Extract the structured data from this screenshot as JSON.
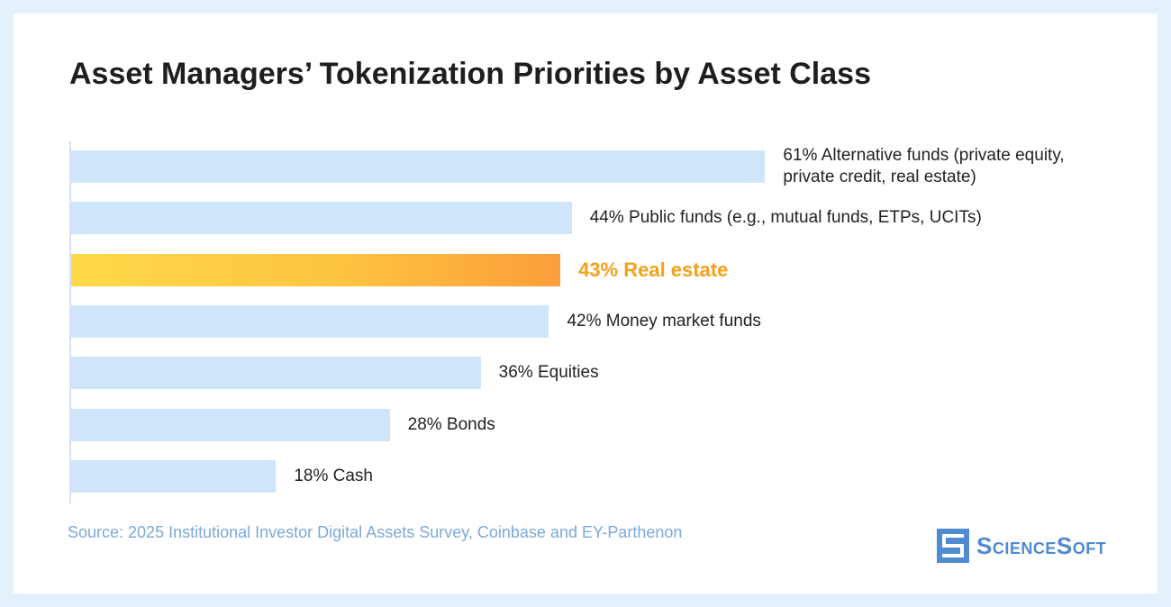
{
  "title": "Asset Managers’ Tokenization Priorities by Asset Class",
  "source": "Source: 2025 Institutional Investor Digital Assets Survey, Coinbase and EY-Parthenon",
  "logo_text": "ScienceSoft",
  "colors": {
    "bar": "#cfe6fa",
    "highlight_start": "#ffd94a",
    "highlight_end": "#fb9e3a",
    "highlight_text": "#f5a01c",
    "source_text": "#7ca9d8",
    "logo": "#4f8bd1"
  },
  "chart_data": {
    "type": "bar",
    "orientation": "horizontal",
    "unit": "%",
    "categories": [
      "Alternative funds (private equity, private credit, real estate)",
      "Public funds (e.g., mutual funds, ETPs, UCITs)",
      "Real estate",
      "Money market funds",
      "Equities",
      "Bonds",
      "Cash"
    ],
    "values": [
      61,
      44,
      43,
      42,
      36,
      28,
      18
    ],
    "value_labels": [
      "61%",
      "44%",
      "43%",
      "42%",
      "36%",
      "28%",
      "18%"
    ],
    "highlighted_category": "Real estate",
    "label_lines": [
      [
        "61% Alternative funds (private equity,",
        "private credit, real estate)"
      ],
      [
        "44% Public funds (e.g., mutual funds, ETPs, UCITs)"
      ],
      [
        "43% Real estate"
      ],
      [
        "42% Money market funds"
      ],
      [
        "36% Equities"
      ],
      [
        "28% Bonds"
      ],
      [
        "18% Cash"
      ]
    ],
    "xlim": [
      0,
      100
    ],
    "grid": false,
    "legend": "none"
  }
}
